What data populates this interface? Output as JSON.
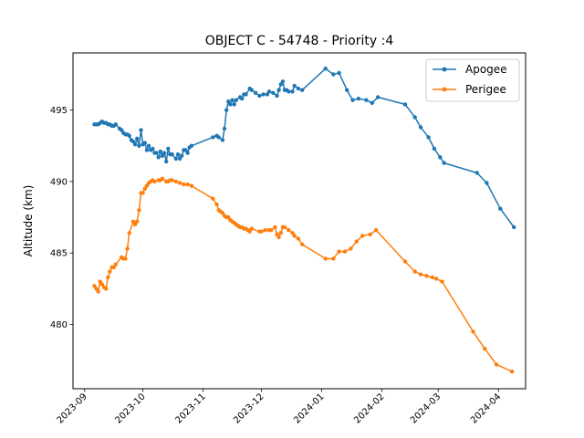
{
  "chart_data": {
    "type": "line",
    "title": "OBJECT C - 54748 - Priority :4",
    "xlabel": "",
    "ylabel": "Altitude (km)",
    "x_type": "date",
    "xlim": [
      "2023-08-26",
      "2024-04-15"
    ],
    "ylim": [
      475.5,
      499
    ],
    "x_ticks": [
      "2023-09",
      "2023-10",
      "2023-11",
      "2023-12",
      "2024-01",
      "2024-02",
      "2024-03",
      "2024-04"
    ],
    "y_ticks": [
      480,
      485,
      490,
      495
    ],
    "grid": false,
    "legend_position": "top-right",
    "colors": {
      "apogee": "#1f77b4",
      "perigee": "#ff7f0e"
    },
    "series": [
      {
        "name": "Apogee",
        "points": [
          [
            "2023-09-06",
            494.0
          ],
          [
            "2023-09-07",
            494.0
          ],
          [
            "2023-09-08",
            494.0
          ],
          [
            "2023-09-09",
            494.1
          ],
          [
            "2023-09-10",
            494.2
          ],
          [
            "2023-09-11",
            494.1
          ],
          [
            "2023-09-12",
            494.1
          ],
          [
            "2023-09-13",
            494.0
          ],
          [
            "2023-09-14",
            494.0
          ],
          [
            "2023-09-15",
            493.9
          ],
          [
            "2023-09-16",
            493.9
          ],
          [
            "2023-09-17",
            494.0
          ],
          [
            "2023-09-19",
            493.7
          ],
          [
            "2023-09-20",
            493.6
          ],
          [
            "2023-09-21",
            493.4
          ],
          [
            "2023-09-22",
            493.3
          ],
          [
            "2023-09-23",
            493.3
          ],
          [
            "2023-09-24",
            493.2
          ],
          [
            "2023-09-25",
            492.9
          ],
          [
            "2023-09-26",
            492.8
          ],
          [
            "2023-09-27",
            492.6
          ],
          [
            "2023-09-28",
            493.0
          ],
          [
            "2023-09-29",
            492.5
          ],
          [
            "2023-09-30",
            493.6
          ],
          [
            "2023-10-01",
            492.6
          ],
          [
            "2023-10-02",
            492.7
          ],
          [
            "2023-10-03",
            492.2
          ],
          [
            "2023-10-04",
            492.5
          ],
          [
            "2023-10-05",
            492.2
          ],
          [
            "2023-10-06",
            492.3
          ],
          [
            "2023-10-07",
            492.0
          ],
          [
            "2023-10-08",
            492.0
          ],
          [
            "2023-10-09",
            491.7
          ],
          [
            "2023-10-10",
            492.1
          ],
          [
            "2023-10-11",
            491.8
          ],
          [
            "2023-10-12",
            492.0
          ],
          [
            "2023-10-13",
            491.4
          ],
          [
            "2023-10-14",
            492.3
          ],
          [
            "2023-10-15",
            491.9
          ],
          [
            "2023-10-16",
            491.9
          ],
          [
            "2023-10-18",
            491.6
          ],
          [
            "2023-10-19",
            491.9
          ],
          [
            "2023-10-20",
            491.6
          ],
          [
            "2023-10-21",
            491.8
          ],
          [
            "2023-10-22",
            492.2
          ],
          [
            "2023-10-23",
            492.2
          ],
          [
            "2023-10-24",
            492.0
          ],
          [
            "2023-10-25",
            492.4
          ],
          [
            "2023-10-26",
            492.5
          ],
          [
            "2023-11-06",
            493.1
          ],
          [
            "2023-11-08",
            493.2
          ],
          [
            "2023-11-09",
            493.1
          ],
          [
            "2023-11-11",
            492.9
          ],
          [
            "2023-11-12",
            493.7
          ],
          [
            "2023-11-13",
            495.0
          ],
          [
            "2023-11-14",
            495.6
          ],
          [
            "2023-11-15",
            495.4
          ],
          [
            "2023-11-16",
            495.7
          ],
          [
            "2023-11-17",
            495.4
          ],
          [
            "2023-11-18",
            495.7
          ],
          [
            "2023-11-20",
            495.9
          ],
          [
            "2023-11-21",
            495.8
          ],
          [
            "2023-11-22",
            496.1
          ],
          [
            "2023-11-23",
            496.1
          ],
          [
            "2023-11-25",
            496.5
          ],
          [
            "2023-11-26",
            496.4
          ],
          [
            "2023-11-28",
            496.2
          ],
          [
            "2023-11-30",
            496.0
          ],
          [
            "2023-12-02",
            496.1
          ],
          [
            "2023-12-04",
            496.1
          ],
          [
            "2023-12-05",
            496.3
          ],
          [
            "2023-12-07",
            496.2
          ],
          [
            "2023-12-09",
            496.0
          ],
          [
            "2023-12-10",
            496.4
          ],
          [
            "2023-12-11",
            496.8
          ],
          [
            "2023-12-12",
            497.0
          ],
          [
            "2023-12-13",
            496.4
          ],
          [
            "2023-12-14",
            496.4
          ],
          [
            "2023-12-15",
            496.3
          ],
          [
            "2023-12-17",
            496.3
          ],
          [
            "2023-12-18",
            496.7
          ],
          [
            "2023-12-20",
            496.5
          ],
          [
            "2023-12-22",
            496.4
          ],
          [
            "2024-01-03",
            497.9
          ],
          [
            "2024-01-07",
            497.5
          ],
          [
            "2024-01-10",
            497.6
          ],
          [
            "2024-01-14",
            496.4
          ],
          [
            "2024-01-17",
            495.7
          ],
          [
            "2024-01-20",
            495.8
          ],
          [
            "2024-01-24",
            495.7
          ],
          [
            "2024-01-27",
            495.5
          ],
          [
            "2024-01-30",
            495.9
          ],
          [
            "2024-02-13",
            495.4
          ],
          [
            "2024-02-18",
            494.5
          ],
          [
            "2024-02-21",
            493.8
          ],
          [
            "2024-02-25",
            493.1
          ],
          [
            "2024-02-28",
            492.3
          ],
          [
            "2024-03-02",
            491.7
          ],
          [
            "2024-03-04",
            491.3
          ],
          [
            "2024-03-21",
            490.6
          ],
          [
            "2024-03-26",
            489.9
          ],
          [
            "2024-04-02",
            488.1
          ],
          [
            "2024-04-09",
            486.8
          ]
        ]
      },
      {
        "name": "Perigee",
        "points": [
          [
            "2023-09-06",
            482.7
          ],
          [
            "2023-09-07",
            482.5
          ],
          [
            "2023-09-08",
            482.3
          ],
          [
            "2023-09-09",
            483.0
          ],
          [
            "2023-09-10",
            482.8
          ],
          [
            "2023-09-11",
            482.6
          ],
          [
            "2023-09-12",
            482.5
          ],
          [
            "2023-09-13",
            483.3
          ],
          [
            "2023-09-14",
            483.7
          ],
          [
            "2023-09-15",
            484.0
          ],
          [
            "2023-09-16",
            484.0
          ],
          [
            "2023-09-17",
            484.2
          ],
          [
            "2023-09-20",
            484.7
          ],
          [
            "2023-09-21",
            484.6
          ],
          [
            "2023-09-22",
            484.6
          ],
          [
            "2023-09-23",
            485.3
          ],
          [
            "2023-09-24",
            486.4
          ],
          [
            "2023-09-26",
            487.2
          ],
          [
            "2023-09-27",
            487.0
          ],
          [
            "2023-09-28",
            487.2
          ],
          [
            "2023-09-29",
            488.0
          ],
          [
            "2023-09-30",
            489.2
          ],
          [
            "2023-10-01",
            489.2
          ],
          [
            "2023-10-02",
            489.5
          ],
          [
            "2023-10-03",
            489.7
          ],
          [
            "2023-10-04",
            489.9
          ],
          [
            "2023-10-05",
            490.0
          ],
          [
            "2023-10-06",
            490.1
          ],
          [
            "2023-10-07",
            490.0
          ],
          [
            "2023-10-09",
            490.1
          ],
          [
            "2023-10-10",
            490.1
          ],
          [
            "2023-10-11",
            490.2
          ],
          [
            "2023-10-13",
            490.0
          ],
          [
            "2023-10-14",
            490.0
          ],
          [
            "2023-10-15",
            490.1
          ],
          [
            "2023-10-16",
            490.1
          ],
          [
            "2023-10-18",
            490.0
          ],
          [
            "2023-10-20",
            489.9
          ],
          [
            "2023-10-22",
            489.8
          ],
          [
            "2023-10-24",
            489.8
          ],
          [
            "2023-10-26",
            489.7
          ],
          [
            "2023-11-06",
            488.8
          ],
          [
            "2023-11-08",
            488.4
          ],
          [
            "2023-11-09",
            488.0
          ],
          [
            "2023-11-10",
            487.9
          ],
          [
            "2023-11-11",
            487.8
          ],
          [
            "2023-11-12",
            487.6
          ],
          [
            "2023-11-13",
            487.5
          ],
          [
            "2023-11-14",
            487.5
          ],
          [
            "2023-11-15",
            487.3
          ],
          [
            "2023-11-16",
            487.2
          ],
          [
            "2023-11-17",
            487.1
          ],
          [
            "2023-11-18",
            487.0
          ],
          [
            "2023-11-19",
            486.9
          ],
          [
            "2023-11-20",
            486.8
          ],
          [
            "2023-11-21",
            486.8
          ],
          [
            "2023-11-22",
            486.7
          ],
          [
            "2023-11-23",
            486.7
          ],
          [
            "2023-11-24",
            486.6
          ],
          [
            "2023-11-25",
            486.5
          ],
          [
            "2023-11-26",
            486.7
          ],
          [
            "2023-11-30",
            486.5
          ],
          [
            "2023-12-01",
            486.5
          ],
          [
            "2023-12-03",
            486.6
          ],
          [
            "2023-12-05",
            486.6
          ],
          [
            "2023-12-06",
            486.6
          ],
          [
            "2023-12-08",
            486.8
          ],
          [
            "2023-12-09",
            486.3
          ],
          [
            "2023-12-10",
            486.1
          ],
          [
            "2023-12-11",
            486.4
          ],
          [
            "2023-12-12",
            486.8
          ],
          [
            "2023-12-13",
            486.8
          ],
          [
            "2023-12-15",
            486.6
          ],
          [
            "2023-12-17",
            486.4
          ],
          [
            "2023-12-18",
            486.2
          ],
          [
            "2023-12-20",
            486.0
          ],
          [
            "2023-12-22",
            485.6
          ],
          [
            "2024-01-03",
            484.6
          ],
          [
            "2024-01-07",
            484.6
          ],
          [
            "2024-01-10",
            485.1
          ],
          [
            "2024-01-13",
            485.1
          ],
          [
            "2024-01-16",
            485.3
          ],
          [
            "2024-01-19",
            485.8
          ],
          [
            "2024-01-22",
            486.2
          ],
          [
            "2024-01-26",
            486.3
          ],
          [
            "2024-01-29",
            486.6
          ],
          [
            "2024-02-13",
            484.4
          ],
          [
            "2024-02-18",
            483.7
          ],
          [
            "2024-02-21",
            483.5
          ],
          [
            "2024-02-24",
            483.4
          ],
          [
            "2024-02-27",
            483.3
          ],
          [
            "2024-02-29",
            483.2
          ],
          [
            "2024-03-03",
            483.0
          ],
          [
            "2024-03-19",
            479.5
          ],
          [
            "2024-03-25",
            478.3
          ],
          [
            "2024-03-31",
            477.2
          ],
          [
            "2024-04-08",
            476.7
          ]
        ]
      }
    ]
  }
}
